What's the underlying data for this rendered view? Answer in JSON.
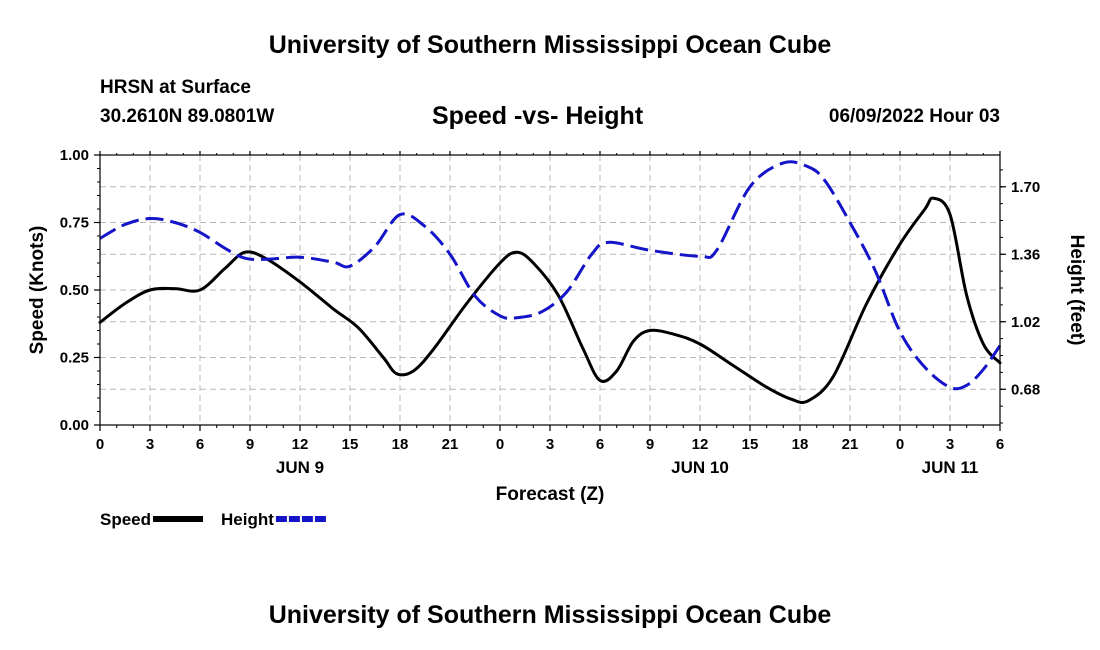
{
  "page": {
    "title": "University of Southern Mississippi Ocean Cube",
    "footer_title": "University of Southern Mississippi Ocean Cube",
    "station": "HRSN at Surface",
    "coordinates": "30.2610N  89.0801W",
    "datetime": "06/09/2022 Hour 03"
  },
  "chart_data": {
    "type": "line",
    "title": "Speed -vs- Height",
    "xlabel": "Forecast (Z)",
    "ylabel": "Speed (Knots)",
    "y2label": "Height (feet)",
    "grid": true,
    "xlim": [
      0,
      54
    ],
    "ylim": [
      0,
      1
    ],
    "y2lim": [
      0.5,
      1.86
    ],
    "x_ticks": [
      0,
      3,
      6,
      9,
      12,
      15,
      18,
      21,
      24,
      27,
      30,
      33,
      36,
      39,
      42,
      45,
      48,
      51,
      54
    ],
    "x_tick_labels": [
      "0",
      "3",
      "6",
      "9",
      "12",
      "15",
      "18",
      "21",
      "0",
      "3",
      "6",
      "9",
      "12",
      "15",
      "18",
      "21",
      "0",
      "3",
      "6"
    ],
    "day_labels": [
      {
        "x": 12,
        "label": "JUN 9"
      },
      {
        "x": 36,
        "label": "JUN 10"
      },
      {
        "x": 51,
        "label": "JUN 11"
      }
    ],
    "y_ticks": [
      0,
      0.25,
      0.5,
      0.75,
      1.0
    ],
    "y_tick_labels": [
      "0.00",
      "0.25",
      "0.50",
      "0.75",
      "1.00"
    ],
    "y2_ticks": [
      0.68,
      1.02,
      1.36,
      1.7
    ],
    "y2_tick_labels": [
      "0.68",
      "1.02",
      "1.36",
      "1.70"
    ],
    "series": [
      {
        "name": "Speed",
        "axis": "left",
        "color": "#000000",
        "dash": "solid",
        "x": [
          0,
          1.5,
          3,
          4.5,
          6,
          7.5,
          8.7,
          10,
          12,
          14,
          15.5,
          17,
          17.8,
          18.8,
          20,
          22,
          24,
          25,
          26,
          27.5,
          29,
          30,
          31,
          32,
          33,
          34.5,
          36,
          38,
          40,
          41.5,
          42.5,
          44,
          46,
          48,
          49.5,
          50,
          51,
          52,
          53,
          54
        ],
        "values": [
          0.38,
          0.45,
          0.5,
          0.505,
          0.5,
          0.58,
          0.64,
          0.615,
          0.53,
          0.43,
          0.36,
          0.25,
          0.19,
          0.2,
          0.28,
          0.45,
          0.6,
          0.64,
          0.6,
          0.48,
          0.28,
          0.165,
          0.2,
          0.31,
          0.35,
          0.335,
          0.3,
          0.22,
          0.14,
          0.095,
          0.09,
          0.18,
          0.45,
          0.67,
          0.8,
          0.84,
          0.78,
          0.48,
          0.3,
          0.23
        ]
      },
      {
        "name": "Height",
        "axis": "right",
        "color": "#1414c8",
        "dash": "dashed",
        "x": [
          0,
          1.5,
          3,
          4.5,
          6,
          7.5,
          8.7,
          10,
          12,
          14,
          15,
          16.5,
          18,
          19.5,
          21,
          22.5,
          24,
          25,
          26.5,
          28,
          29.5,
          30.5,
          33,
          36,
          37,
          39,
          41,
          42.5,
          43.5,
          45,
          46.5,
          48,
          49.5,
          51,
          52,
          53,
          54
        ],
        "values": [
          1.44,
          1.51,
          1.54,
          1.52,
          1.47,
          1.39,
          1.34,
          1.335,
          1.345,
          1.32,
          1.3,
          1.4,
          1.56,
          1.5,
          1.36,
          1.15,
          1.05,
          1.04,
          1.07,
          1.17,
          1.36,
          1.42,
          1.38,
          1.35,
          1.38,
          1.7,
          1.82,
          1.8,
          1.73,
          1.52,
          1.28,
          0.97,
          0.79,
          0.69,
          0.7,
          0.78,
          0.9
        ]
      }
    ],
    "legend_position": "bottom-left"
  }
}
